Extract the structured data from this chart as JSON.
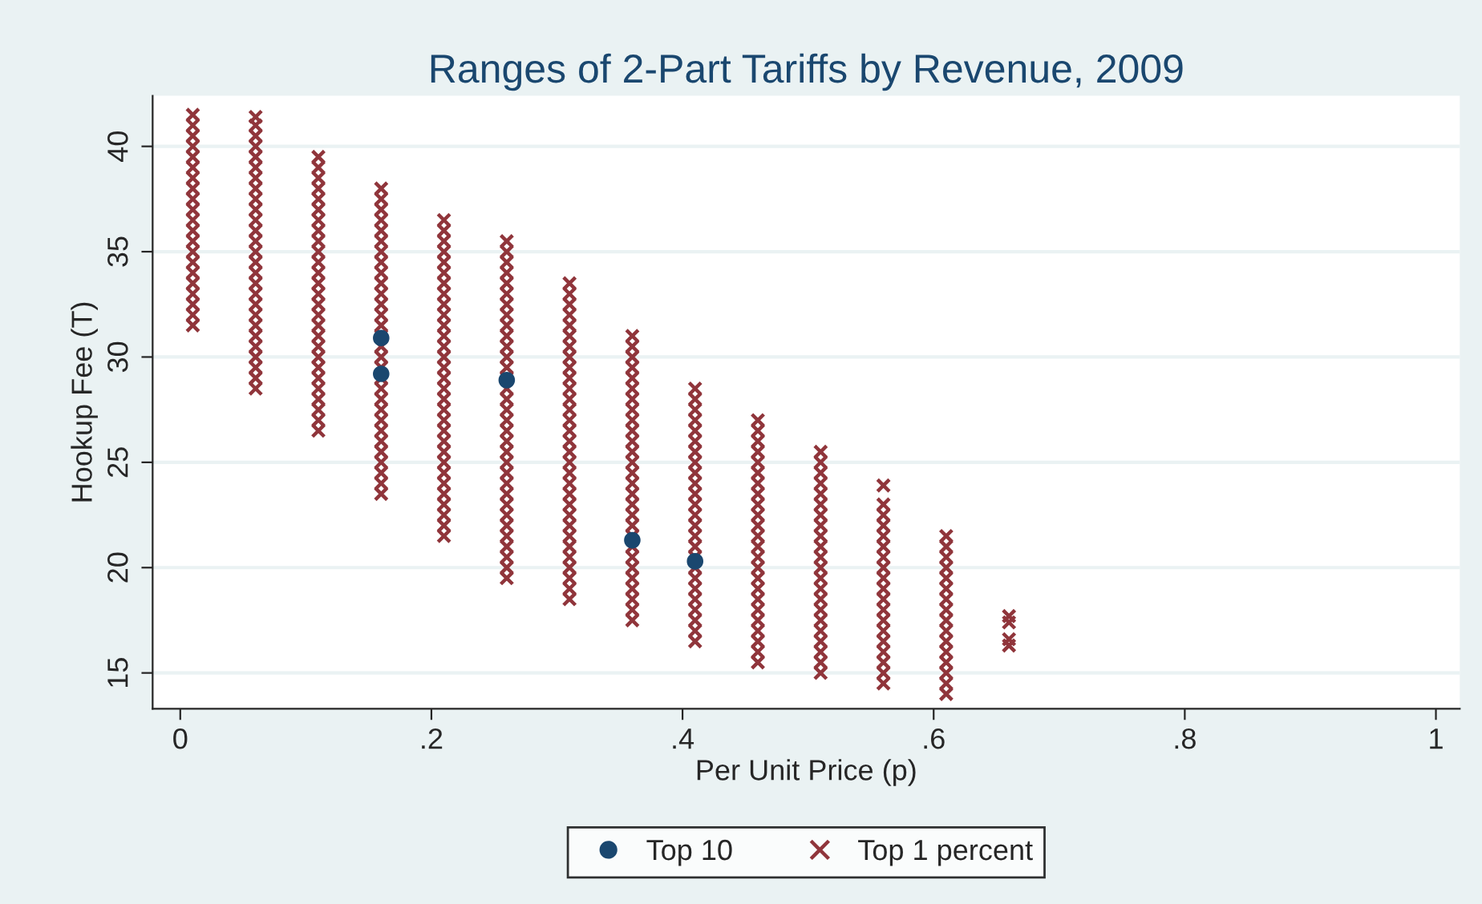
{
  "chart_data": {
    "type": "scatter",
    "title": "Ranges of 2-Part Tariffs by Revenue, 2009",
    "xlabel": "Per Unit Price (p)",
    "ylabel": "Hookup Fee (T)",
    "xlim": [
      -0.022,
      1.019
    ],
    "ylim": [
      13.3,
      42.4
    ],
    "xticks": [
      0,
      {
        "value": 0.2,
        "label": ".2"
      },
      {
        "value": 0.4,
        "label": ".4"
      },
      {
        "value": 0.6,
        "label": ".6"
      },
      {
        "value": 0.8,
        "label": ".8"
      },
      1
    ],
    "yticks": [
      15,
      20,
      25,
      30,
      35,
      40
    ],
    "grid": "y",
    "legend": "bottom",
    "series": [
      {
        "name": "Top 10",
        "color": "#1a476f",
        "marker": "circle",
        "x": [
          0.16,
          0.16,
          0.26,
          0.36,
          0.41
        ],
        "values": [
          30.9,
          29.2,
          28.9,
          21.3,
          20.3
        ]
      },
      {
        "name": "Top 1 percent",
        "color": "#90353b",
        "marker": "cross",
        "x": [
          0.01,
          0.01,
          0.01,
          0.01,
          0.01,
          0.01,
          0.01,
          0.01,
          0.01,
          0.01,
          0.01,
          0.01,
          0.01,
          0.01,
          0.01,
          0.01,
          0.01,
          0.01,
          0.01,
          0.01,
          0.01,
          0.06,
          0.06,
          0.06,
          0.06,
          0.06,
          0.06,
          0.06,
          0.06,
          0.06,
          0.06,
          0.06,
          0.06,
          0.06,
          0.06,
          0.06,
          0.06,
          0.06,
          0.06,
          0.06,
          0.06,
          0.06,
          0.06,
          0.06,
          0.06,
          0.06,
          0.06,
          0.06,
          0.11,
          0.11,
          0.11,
          0.11,
          0.11,
          0.11,
          0.11,
          0.11,
          0.11,
          0.11,
          0.11,
          0.11,
          0.11,
          0.11,
          0.11,
          0.11,
          0.11,
          0.11,
          0.11,
          0.11,
          0.11,
          0.11,
          0.11,
          0.11,
          0.11,
          0.11,
          0.11,
          0.16,
          0.16,
          0.16,
          0.16,
          0.16,
          0.16,
          0.16,
          0.16,
          0.16,
          0.16,
          0.16,
          0.16,
          0.16,
          0.16,
          0.16,
          0.16,
          0.16,
          0.16,
          0.16,
          0.16,
          0.16,
          0.16,
          0.16,
          0.16,
          0.16,
          0.16,
          0.16,
          0.16,
          0.16,
          0.16,
          0.21,
          0.21,
          0.21,
          0.21,
          0.21,
          0.21,
          0.21,
          0.21,
          0.21,
          0.21,
          0.21,
          0.21,
          0.21,
          0.21,
          0.21,
          0.21,
          0.21,
          0.21,
          0.21,
          0.21,
          0.21,
          0.21,
          0.21,
          0.21,
          0.21,
          0.21,
          0.21,
          0.21,
          0.21,
          0.21,
          0.21,
          0.26,
          0.26,
          0.26,
          0.26,
          0.26,
          0.26,
          0.26,
          0.26,
          0.26,
          0.26,
          0.26,
          0.26,
          0.26,
          0.26,
          0.26,
          0.26,
          0.26,
          0.26,
          0.26,
          0.26,
          0.26,
          0.26,
          0.26,
          0.26,
          0.26,
          0.26,
          0.26,
          0.26,
          0.26,
          0.26,
          0.26,
          0.26,
          0.26,
          0.31,
          0.31,
          0.31,
          0.31,
          0.31,
          0.31,
          0.31,
          0.31,
          0.31,
          0.31,
          0.31,
          0.31,
          0.31,
          0.31,
          0.31,
          0.31,
          0.31,
          0.31,
          0.31,
          0.31,
          0.31,
          0.31,
          0.31,
          0.31,
          0.31,
          0.31,
          0.31,
          0.31,
          0.31,
          0.31,
          0.31,
          0.36,
          0.36,
          0.36,
          0.36,
          0.36,
          0.36,
          0.36,
          0.36,
          0.36,
          0.36,
          0.36,
          0.36,
          0.36,
          0.36,
          0.36,
          0.36,
          0.36,
          0.36,
          0.36,
          0.36,
          0.36,
          0.36,
          0.36,
          0.36,
          0.36,
          0.36,
          0.36,
          0.36,
          0.41,
          0.41,
          0.41,
          0.41,
          0.41,
          0.41,
          0.41,
          0.41,
          0.41,
          0.41,
          0.41,
          0.41,
          0.41,
          0.41,
          0.41,
          0.41,
          0.41,
          0.41,
          0.41,
          0.41,
          0.41,
          0.41,
          0.41,
          0.41,
          0.41,
          0.46,
          0.46,
          0.46,
          0.46,
          0.46,
          0.46,
          0.46,
          0.46,
          0.46,
          0.46,
          0.46,
          0.46,
          0.46,
          0.46,
          0.46,
          0.46,
          0.46,
          0.46,
          0.46,
          0.46,
          0.46,
          0.46,
          0.46,
          0.46,
          0.51,
          0.51,
          0.51,
          0.51,
          0.51,
          0.51,
          0.51,
          0.51,
          0.51,
          0.51,
          0.51,
          0.51,
          0.51,
          0.51,
          0.51,
          0.51,
          0.51,
          0.51,
          0.51,
          0.51,
          0.51,
          0.51,
          0.56,
          0.56,
          0.56,
          0.56,
          0.56,
          0.56,
          0.56,
          0.56,
          0.56,
          0.56,
          0.56,
          0.56,
          0.56,
          0.56,
          0.56,
          0.56,
          0.56,
          0.56,
          0.56,
          0.61,
          0.61,
          0.61,
          0.61,
          0.61,
          0.61,
          0.61,
          0.61,
          0.61,
          0.61,
          0.61,
          0.61,
          0.61,
          0.61,
          0.61,
          0.61,
          0.66,
          0.66,
          0.66,
          0.66
        ],
        "values": [
          31.5,
          32,
          32.5,
          33,
          33.5,
          34,
          34.5,
          35,
          35.5,
          36,
          36.5,
          37,
          37.5,
          38,
          38.5,
          39,
          39.5,
          40,
          40.5,
          41,
          41.5,
          28.5,
          29,
          29.5,
          30,
          30.5,
          31,
          31.5,
          32,
          32.5,
          33,
          33.5,
          34,
          34.5,
          35,
          35.5,
          36,
          36.5,
          37,
          37.5,
          38,
          38.5,
          39,
          39.5,
          40,
          40.5,
          41,
          41.4,
          26.5,
          27,
          27.5,
          28,
          28.5,
          29,
          29.5,
          30,
          30.5,
          31,
          31.5,
          32,
          32.5,
          33,
          33.5,
          34,
          34.5,
          35,
          35.5,
          36,
          36.5,
          37,
          37.5,
          38,
          38.5,
          39,
          39.5,
          23.5,
          24,
          24.5,
          25,
          25.5,
          26,
          26.5,
          27,
          27.5,
          28,
          28.5,
          29,
          29.5,
          30,
          30.5,
          31,
          31.5,
          32,
          32.5,
          33,
          33.5,
          34,
          34.5,
          35,
          35.5,
          36,
          36.5,
          37,
          37.5,
          38,
          21.5,
          22,
          22.5,
          23,
          23.5,
          24,
          24.5,
          25,
          25.5,
          26,
          26.5,
          27,
          27.5,
          28,
          28.5,
          29,
          29.5,
          30,
          30.5,
          31,
          31.5,
          32,
          32.5,
          33,
          33.5,
          34,
          34.5,
          35,
          35.5,
          36,
          36.5,
          19.5,
          20,
          20.5,
          21,
          21.5,
          22,
          22.5,
          23,
          23.5,
          24,
          24.5,
          25,
          25.5,
          26,
          26.5,
          27,
          27.5,
          28,
          28.5,
          29,
          29.5,
          30,
          30.5,
          31,
          31.5,
          32,
          32.5,
          33,
          33.5,
          34,
          34.5,
          35,
          35.5,
          18.5,
          19,
          19.5,
          20,
          20.5,
          21,
          21.5,
          22,
          22.5,
          23,
          23.5,
          24,
          24.5,
          25,
          25.5,
          26,
          26.5,
          27,
          27.5,
          28,
          28.5,
          29,
          29.5,
          30,
          30.5,
          31,
          31.5,
          32,
          32.5,
          33,
          33.5,
          17.5,
          18,
          18.5,
          19,
          19.5,
          20,
          20.5,
          21,
          21.5,
          22,
          22.5,
          23,
          23.5,
          24,
          24.5,
          25,
          25.5,
          26,
          26.5,
          27,
          27.5,
          28,
          28.5,
          29,
          29.5,
          30,
          30.5,
          31,
          16.5,
          17,
          17.5,
          18,
          18.5,
          19,
          19.5,
          20,
          20.5,
          21,
          21.5,
          22,
          22.5,
          23,
          23.5,
          24,
          24.5,
          25,
          25.5,
          26,
          26.5,
          27,
          27.5,
          28,
          28.5,
          15.5,
          16,
          16.5,
          17,
          17.5,
          18,
          18.5,
          19,
          19.5,
          20,
          20.5,
          21,
          21.5,
          22,
          22.5,
          23,
          23.5,
          24,
          24.5,
          25,
          25.5,
          26,
          26.5,
          27,
          15,
          15.5,
          16,
          16.5,
          17,
          17.5,
          18,
          18.5,
          19,
          19.5,
          20,
          20.5,
          21,
          21.5,
          22,
          22.5,
          23,
          23.5,
          24,
          24.5,
          25,
          25.5,
          14.5,
          15,
          15.5,
          16,
          16.5,
          17,
          17.5,
          18,
          18.5,
          19,
          19.5,
          20,
          20.5,
          21,
          21.5,
          22,
          22.5,
          23,
          23.9,
          14,
          14.5,
          15,
          15.5,
          16,
          16.5,
          17,
          17.5,
          18,
          18.5,
          19,
          19.5,
          20,
          20.5,
          21,
          21.5,
          16.3,
          16.6,
          17.4,
          17.7
        ]
      }
    ]
  }
}
